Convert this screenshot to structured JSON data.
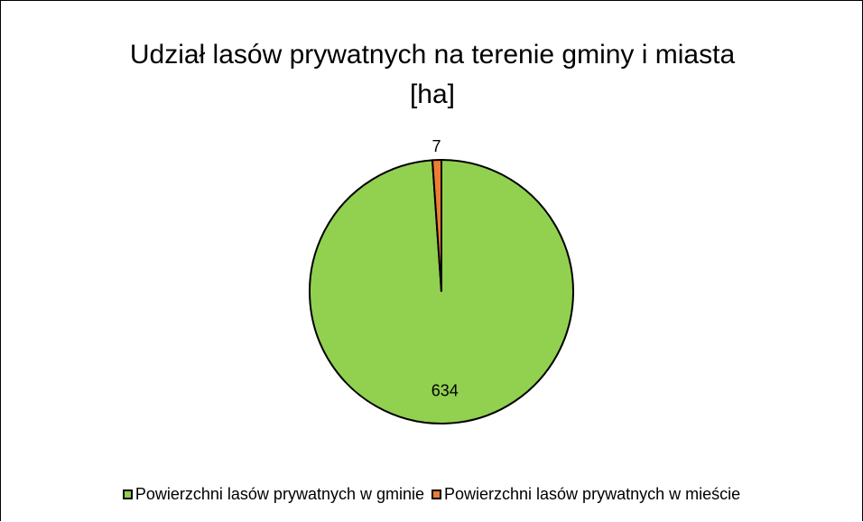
{
  "chart_data": {
    "type": "pie",
    "title": "Udział lasów prywatnych na terenie gminy i miasta [ha]",
    "categories": [
      "Powierzchni lasów prywatnych w gminie",
      "Powierzchni lasów prywatnych w mieście"
    ],
    "values": [
      634,
      7
    ],
    "colors": [
      "#92d050",
      "#ed7d31"
    ],
    "legend": "bottom"
  }
}
